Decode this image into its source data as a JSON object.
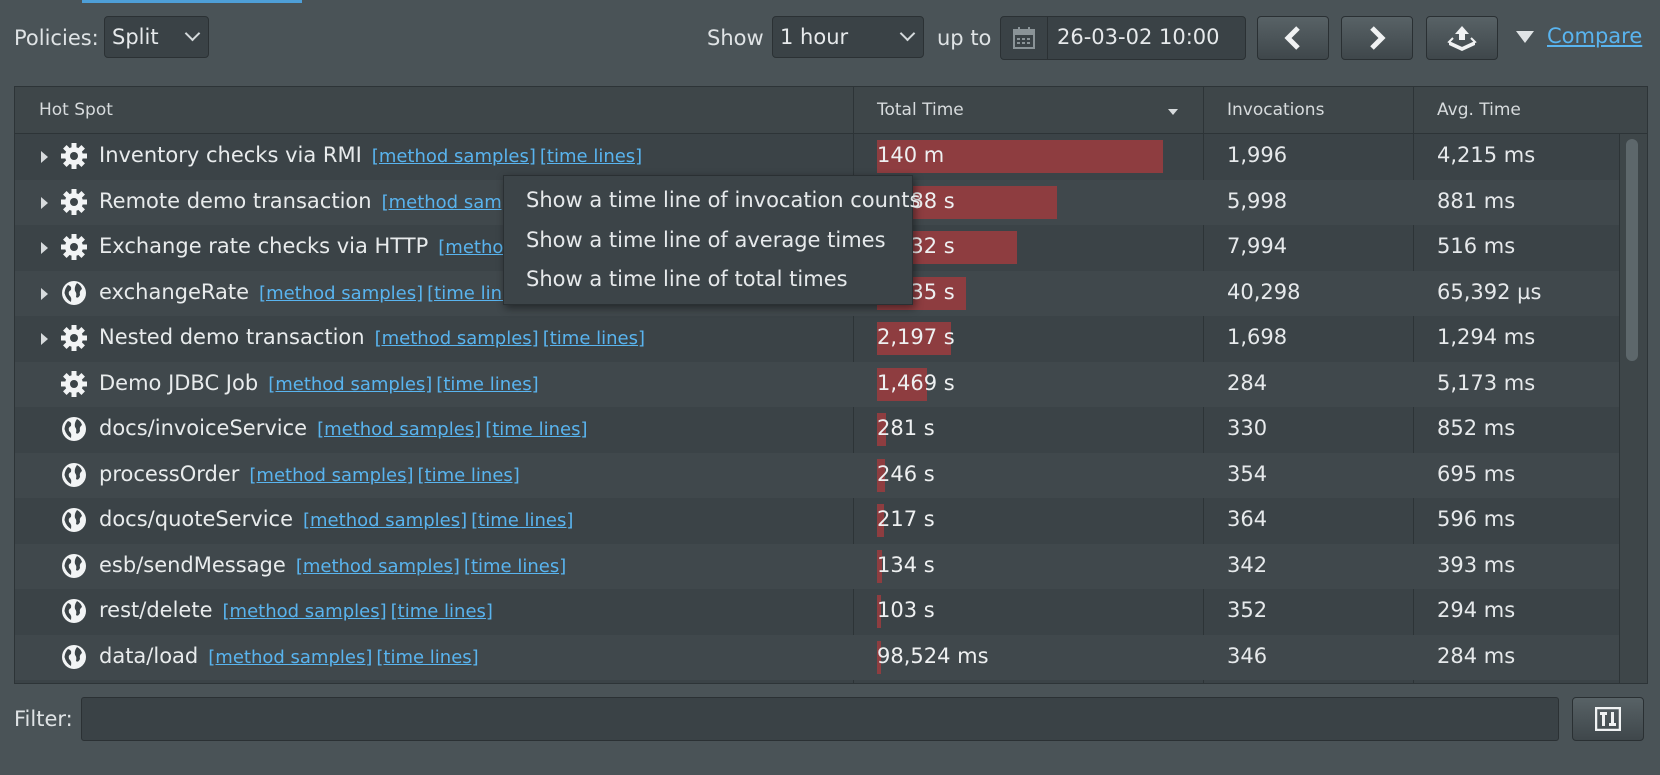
{
  "toolbar": {
    "policies_label": "Policies:",
    "policy_value": "Split",
    "show_label": "Show",
    "range_value": "1 hour",
    "up_to_label": "up to",
    "date_value": "26-03-02 10:00",
    "compare_label": "Compare"
  },
  "table": {
    "columns": [
      "Hot Spot",
      "Total Time",
      "Invocations",
      "Avg. Time"
    ],
    "sort_column": "Total Time",
    "link_labels": {
      "samples": "[method samples]",
      "timelines": "[time lines]"
    },
    "rows": [
      {
        "name": "Inventory checks via RMI",
        "icon": "gear-icon",
        "expandable": true,
        "total": "140 m",
        "bar": 1.0,
        "inv": "1,996",
        "avg": "4,215 ms"
      },
      {
        "name": "Remote demo transaction",
        "icon": "gear-icon",
        "expandable": true,
        "total": "5,288 s",
        "bar": 0.63,
        "inv": "5,998",
        "avg": "881 ms"
      },
      {
        "name": "Exchange rate checks via HTTP",
        "icon": "gear-icon",
        "expandable": true,
        "total": "4,132 s",
        "bar": 0.49,
        "inv": "7,994",
        "avg": "516 ms"
      },
      {
        "name": "exchangeRate",
        "icon": "globe-icon",
        "expandable": true,
        "total": "2,635 s",
        "bar": 0.31,
        "inv": "40,298",
        "avg": "65,392 µs"
      },
      {
        "name": "Nested demo transaction",
        "icon": "gear-icon",
        "expandable": true,
        "total": "2,197 s",
        "bar": 0.26,
        "inv": "1,698",
        "avg": "1,294 ms"
      },
      {
        "name": "Demo JDBC Job",
        "icon": "gear-icon",
        "expandable": false,
        "total": "1,469 s",
        "bar": 0.175,
        "inv": "284",
        "avg": "5,173 ms"
      },
      {
        "name": "docs/invoiceService",
        "icon": "globe-icon",
        "expandable": false,
        "total": "281 s",
        "bar": 0.033,
        "inv": "330",
        "avg": "852 ms"
      },
      {
        "name": "processOrder",
        "icon": "globe-icon",
        "expandable": false,
        "total": "246 s",
        "bar": 0.029,
        "inv": "354",
        "avg": "695 ms"
      },
      {
        "name": "docs/quoteService",
        "icon": "globe-icon",
        "expandable": false,
        "total": "217 s",
        "bar": 0.026,
        "inv": "364",
        "avg": "596 ms"
      },
      {
        "name": "esb/sendMessage",
        "icon": "globe-icon",
        "expandable": false,
        "total": "134 s",
        "bar": 0.016,
        "inv": "342",
        "avg": "393 ms"
      },
      {
        "name": "rest/delete",
        "icon": "globe-icon",
        "expandable": false,
        "total": "103 s",
        "bar": 0.012,
        "inv": "352",
        "avg": "294 ms"
      },
      {
        "name": "data/load",
        "icon": "globe-icon",
        "expandable": false,
        "total": "98,524 ms",
        "bar": 0.012,
        "inv": "346",
        "avg": "284 ms"
      }
    ]
  },
  "context_menu": {
    "items": [
      "Show a time line of invocation counts",
      "Show a time line of average times",
      "Show a time line of total times"
    ]
  },
  "filter": {
    "label": "Filter:",
    "value": ""
  },
  "colors": {
    "accent": "#59b4ef",
    "bar": "#8e3d40",
    "background": "#4a5357"
  }
}
